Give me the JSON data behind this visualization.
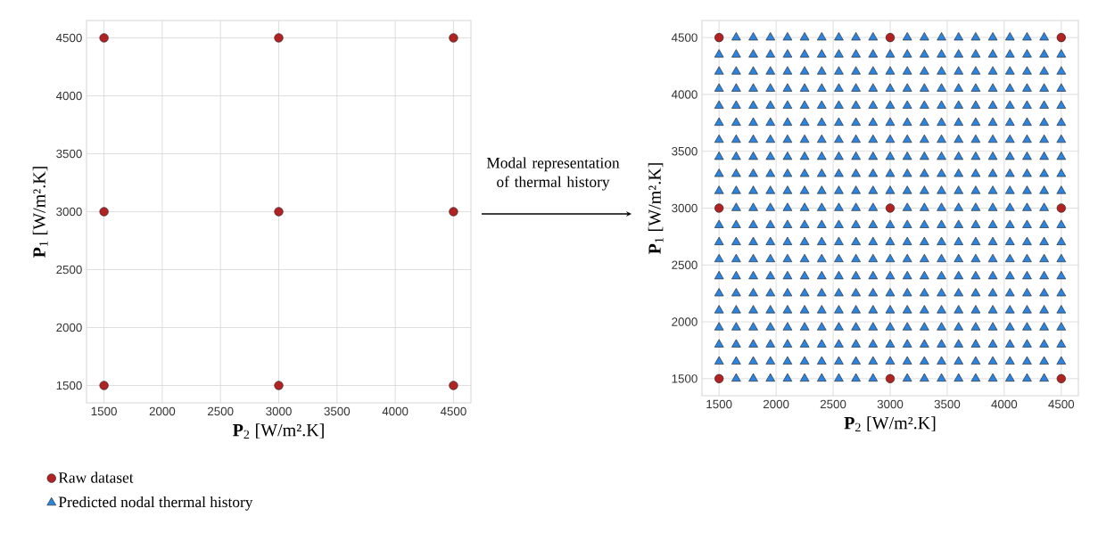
{
  "chart_data": [
    {
      "type": "scatter",
      "xlabel": "**P**$_{2}$ [W/m².K]",
      "ylabel": "**P**$_{1}$ [W/m².K]",
      "xlim": [
        1350,
        4650
      ],
      "ylim": [
        1350,
        4650
      ],
      "xticks": [
        1500,
        2000,
        2500,
        3000,
        3500,
        4000,
        4500
      ],
      "yticks": [
        1500,
        2000,
        2500,
        3000,
        3500,
        4000,
        4500
      ],
      "grid": true,
      "series": [
        {
          "color": "#b22222",
          "marker": "circle",
          "x": [
            1500,
            3000,
            4500,
            1500,
            3000,
            4500,
            1500,
            3000,
            4500
          ],
          "values": [
            1500,
            1500,
            1500,
            3000,
            3000,
            3000,
            4500,
            4500,
            4500
          ]
        }
      ]
    },
    {
      "type": "scatter",
      "xlabel": "**P**$_{2}$ [W/m².K]",
      "ylabel": "**P**$_{1}$ [W/m².K]",
      "xlim": [
        1350,
        4650
      ],
      "ylim": [
        1350,
        4650
      ],
      "xticks": [
        1500,
        2000,
        2500,
        3000,
        3500,
        4000,
        4500
      ],
      "yticks": [
        1500,
        2000,
        2500,
        3000,
        3500,
        4000,
        4500
      ],
      "grid": true,
      "legend": "bottom left",
      "annotations": [
        "Modal representation of thermal history"
      ],
      "series": [
        {
          "name": "Raw dataset",
          "color": "#b22222",
          "marker": "circle",
          "x": [
            1500,
            3000,
            4500,
            1500,
            3000,
            4500,
            1500,
            3000,
            4500
          ],
          "values": [
            1500,
            1500,
            1500,
            3000,
            3000,
            3000,
            4500,
            4500,
            4500
          ]
        },
        {
          "name": "Predicted nodal thermal history",
          "color": "#2a84e0",
          "marker": "triangle",
          "x": [
            1650,
            1800,
            1950,
            2100,
            2250,
            2400,
            2550,
            2700,
            2850,
            3150,
            3300,
            3450,
            3600,
            3750,
            3900,
            4050,
            4200,
            4350,
            1500,
            1650,
            1800,
            1950,
            2100,
            2250,
            2400,
            2550,
            2700,
            2850,
            3000,
            3150,
            3300,
            3450,
            3600,
            3750,
            3900,
            4050,
            4200,
            4350,
            4500,
            1500,
            1650,
            1800,
            1950,
            2100,
            2250,
            2400,
            2550,
            2700,
            2850,
            3000,
            3150,
            3300,
            3450,
            3600,
            3750,
            3900,
            4050,
            4200,
            4350,
            4500,
            1500,
            1650,
            1800,
            1950,
            2100,
            2250,
            2400,
            2550,
            2700,
            2850,
            3000,
            3150,
            3300,
            3450,
            3600,
            3750,
            3900,
            4050,
            4200,
            4350,
            4500,
            1500,
            1650,
            1800,
            1950,
            2100,
            2250,
            2400,
            2550,
            2700,
            2850,
            3000,
            3150,
            3300,
            3450,
            3600,
            3750,
            3900,
            4050,
            4200,
            4350,
            4500,
            1500,
            1650,
            1800,
            1950,
            2100,
            2250,
            2400,
            2550,
            2700,
            2850,
            3000,
            3150,
            3300,
            3450,
            3600,
            3750,
            3900,
            4050,
            4200,
            4350,
            4500,
            1500,
            1650,
            1800,
            1950,
            2100,
            2250,
            2400,
            2550,
            2700,
            2850,
            3000,
            3150,
            3300,
            3450,
            3600,
            3750,
            3900,
            4050,
            4200,
            4350,
            4500,
            1500,
            1650,
            1800,
            1950,
            2100,
            2250,
            2400,
            2550,
            2700,
            2850,
            3000,
            3150,
            3300,
            3450,
            3600,
            3750,
            3900,
            4050,
            4200,
            4350,
            4500,
            1500,
            1650,
            1800,
            1950,
            2100,
            2250,
            2400,
            2550,
            2700,
            2850,
            3000,
            3150,
            3300,
            3450,
            3600,
            3750,
            3900,
            4050,
            4200,
            4350,
            4500,
            1500,
            1650,
            1800,
            1950,
            2100,
            2250,
            2400,
            2550,
            2700,
            2850,
            3000,
            3150,
            3300,
            3450,
            3600,
            3750,
            3900,
            4050,
            4200,
            4350,
            4500,
            1650,
            1800,
            1950,
            2100,
            2250,
            2400,
            2550,
            2700,
            2850,
            3150,
            3300,
            3450,
            3600,
            3750,
            3900,
            4050,
            4200,
            4350,
            1500,
            1650,
            1800,
            1950,
            2100,
            2250,
            2400,
            2550,
            2700,
            2850,
            3000,
            3150,
            3300,
            3450,
            3600,
            3750,
            3900,
            4050,
            4200,
            4350,
            4500,
            1500,
            1650,
            1800,
            1950,
            2100,
            2250,
            2400,
            2550,
            2700,
            2850,
            3000,
            3150,
            3300,
            3450,
            3600,
            3750,
            3900,
            4050,
            4200,
            4350,
            4500,
            1500,
            1650,
            1800,
            1950,
            2100,
            2250,
            2400,
            2550,
            2700,
            2850,
            3000,
            3150,
            3300,
            3450,
            3600,
            3750,
            3900,
            4050,
            4200,
            4350,
            4500,
            1500,
            1650,
            1800,
            1950,
            2100,
            2250,
            2400,
            2550,
            2700,
            2850,
            3000,
            3150,
            3300,
            3450,
            3600,
            3750,
            3900,
            4050,
            4200,
            4350,
            4500,
            1500,
            1650,
            1800,
            1950,
            2100,
            2250,
            2400,
            2550,
            2700,
            2850,
            3000,
            3150,
            3300,
            3450,
            3600,
            3750,
            3900,
            4050,
            4200,
            4350,
            4500,
            1500,
            1650,
            1800,
            1950,
            2100,
            2250,
            2400,
            2550,
            2700,
            2850,
            3000,
            3150,
            3300,
            3450,
            3600,
            3750,
            3900,
            4050,
            4200,
            4350,
            4500,
            1500,
            1650,
            1800,
            1950,
            2100,
            2250,
            2400,
            2550,
            2700,
            2850,
            3000,
            3150,
            3300,
            3450,
            3600,
            3750,
            3900,
            4050,
            4200,
            4350,
            4500,
            1500,
            1650,
            1800,
            1950,
            2100,
            2250,
            2400,
            2550,
            2700,
            2850,
            3000,
            3150,
            3300,
            3450,
            3600,
            3750,
            3900,
            4050,
            4200,
            4350,
            4500,
            1500,
            1650,
            1800,
            1950,
            2100,
            2250,
            2400,
            2550,
            2700,
            2850,
            3000,
            3150,
            3300,
            3450,
            3600,
            3750,
            3900,
            4050,
            4200,
            4350,
            4500,
            1650,
            1800,
            1950,
            2100,
            2250,
            2400,
            2550,
            2700,
            2850,
            3150,
            3300,
            3450,
            3600,
            3750,
            3900,
            4050,
            4200,
            4350
          ],
          "values": [
            1500,
            1500,
            1500,
            1500,
            1500,
            1500,
            1500,
            1500,
            1500,
            1500,
            1500,
            1500,
            1500,
            1500,
            1500,
            1500,
            1500,
            1500,
            1650,
            1650,
            1650,
            1650,
            1650,
            1650,
            1650,
            1650,
            1650,
            1650,
            1650,
            1650,
            1650,
            1650,
            1650,
            1650,
            1650,
            1650,
            1650,
            1650,
            1650,
            1800,
            1800,
            1800,
            1800,
            1800,
            1800,
            1800,
            1800,
            1800,
            1800,
            1800,
            1800,
            1800,
            1800,
            1800,
            1800,
            1800,
            1800,
            1800,
            1800,
            1800,
            1950,
            1950,
            1950,
            1950,
            1950,
            1950,
            1950,
            1950,
            1950,
            1950,
            1950,
            1950,
            1950,
            1950,
            1950,
            1950,
            1950,
            1950,
            1950,
            1950,
            1950,
            2100,
            2100,
            2100,
            2100,
            2100,
            2100,
            2100,
            2100,
            2100,
            2100,
            2100,
            2100,
            2100,
            2100,
            2100,
            2100,
            2100,
            2100,
            2100,
            2100,
            2100,
            2250,
            2250,
            2250,
            2250,
            2250,
            2250,
            2250,
            2250,
            2250,
            2250,
            2250,
            2250,
            2250,
            2250,
            2250,
            2250,
            2250,
            2250,
            2250,
            2250,
            2250,
            2400,
            2400,
            2400,
            2400,
            2400,
            2400,
            2400,
            2400,
            2400,
            2400,
            2400,
            2400,
            2400,
            2400,
            2400,
            2400,
            2400,
            2400,
            2400,
            2400,
            2400,
            2550,
            2550,
            2550,
            2550,
            2550,
            2550,
            2550,
            2550,
            2550,
            2550,
            2550,
            2550,
            2550,
            2550,
            2550,
            2550,
            2550,
            2550,
            2550,
            2550,
            2550,
            2700,
            2700,
            2700,
            2700,
            2700,
            2700,
            2700,
            2700,
            2700,
            2700,
            2700,
            2700,
            2700,
            2700,
            2700,
            2700,
            2700,
            2700,
            2700,
            2700,
            2700,
            2850,
            2850,
            2850,
            2850,
            2850,
            2850,
            2850,
            2850,
            2850,
            2850,
            2850,
            2850,
            2850,
            2850,
            2850,
            2850,
            2850,
            2850,
            2850,
            2850,
            2850,
            3000,
            3000,
            3000,
            3000,
            3000,
            3000,
            3000,
            3000,
            3000,
            3000,
            3000,
            3000,
            3000,
            3000,
            3000,
            3000,
            3000,
            3000,
            3150,
            3150,
            3150,
            3150,
            3150,
            3150,
            3150,
            3150,
            3150,
            3150,
            3150,
            3150,
            3150,
            3150,
            3150,
            3150,
            3150,
            3150,
            3150,
            3150,
            3150,
            3300,
            3300,
            3300,
            3300,
            3300,
            3300,
            3300,
            3300,
            3300,
            3300,
            3300,
            3300,
            3300,
            3300,
            3300,
            3300,
            3300,
            3300,
            3300,
            3300,
            3300,
            3450,
            3450,
            3450,
            3450,
            3450,
            3450,
            3450,
            3450,
            3450,
            3450,
            3450,
            3450,
            3450,
            3450,
            3450,
            3450,
            3450,
            3450,
            3450,
            3450,
            3450,
            3600,
            3600,
            3600,
            3600,
            3600,
            3600,
            3600,
            3600,
            3600,
            3600,
            3600,
            3600,
            3600,
            3600,
            3600,
            3600,
            3600,
            3600,
            3600,
            3600,
            3600,
            3750,
            3750,
            3750,
            3750,
            3750,
            3750,
            3750,
            3750,
            3750,
            3750,
            3750,
            3750,
            3750,
            3750,
            3750,
            3750,
            3750,
            3750,
            3750,
            3750,
            3750,
            3900,
            3900,
            3900,
            3900,
            3900,
            3900,
            3900,
            3900,
            3900,
            3900,
            3900,
            3900,
            3900,
            3900,
            3900,
            3900,
            3900,
            3900,
            3900,
            3900,
            3900,
            4050,
            4050,
            4050,
            4050,
            4050,
            4050,
            4050,
            4050,
            4050,
            4050,
            4050,
            4050,
            4050,
            4050,
            4050,
            4050,
            4050,
            4050,
            4050,
            4050,
            4050,
            4200,
            4200,
            4200,
            4200,
            4200,
            4200,
            4200,
            4200,
            4200,
            4200,
            4200,
            4200,
            4200,
            4200,
            4200,
            4200,
            4200,
            4200,
            4200,
            4200,
            4200,
            4350,
            4350,
            4350,
            4350,
            4350,
            4350,
            4350,
            4350,
            4350,
            4350,
            4350,
            4350,
            4350,
            4350,
            4350,
            4350,
            4350,
            4350,
            4350,
            4350,
            4350,
            4500,
            4500,
            4500,
            4500,
            4500,
            4500,
            4500,
            4500,
            4500,
            4500,
            4500,
            4500,
            4500,
            4500,
            4500,
            4500,
            4500,
            4500
          ]
        }
      ]
    }
  ]
}
